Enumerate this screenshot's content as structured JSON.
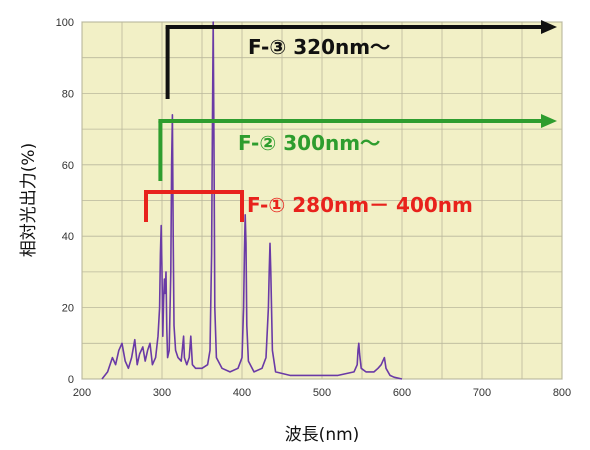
{
  "chart_data": {
    "type": "line",
    "xlabel": "波長(nm)",
    "ylabel": "相対光出力(%)",
    "xlim": [
      200,
      800
    ],
    "ylim": [
      0,
      100
    ],
    "x_ticks": [
      "200",
      "300",
      "400",
      "500",
      "600",
      "700",
      "800"
    ],
    "y_ticks": [
      "0",
      "20",
      "40",
      "60",
      "80",
      "100"
    ],
    "grid": true,
    "colors": {
      "plot_bg": "#f2f0c6",
      "grid": "#b9b79c",
      "spectrum": "#6a3aa6"
    },
    "series": [
      {
        "color": "#6a3aa6",
        "points": [
          [
            225,
            0
          ],
          [
            232,
            2
          ],
          [
            238,
            6
          ],
          [
            242,
            4
          ],
          [
            246,
            8
          ],
          [
            250,
            10
          ],
          [
            254,
            5
          ],
          [
            258,
            3
          ],
          [
            262,
            6
          ],
          [
            266,
            11
          ],
          [
            269,
            4
          ],
          [
            272,
            7
          ],
          [
            276,
            9
          ],
          [
            279,
            5
          ],
          [
            282,
            8
          ],
          [
            285,
            10
          ],
          [
            288,
            4
          ],
          [
            292,
            6
          ],
          [
            295,
            12
          ],
          [
            297,
            20
          ],
          [
            298,
            35
          ],
          [
            299,
            43
          ],
          [
            300,
            30
          ],
          [
            301,
            12
          ],
          [
            302,
            22
          ],
          [
            303,
            28
          ],
          [
            304,
            24
          ],
          [
            305,
            30
          ],
          [
            306,
            14
          ],
          [
            307,
            6
          ],
          [
            309,
            8
          ],
          [
            311,
            30
          ],
          [
            312,
            60
          ],
          [
            313,
            74
          ],
          [
            314,
            40
          ],
          [
            315,
            15
          ],
          [
            317,
            8
          ],
          [
            320,
            6
          ],
          [
            324,
            5
          ],
          [
            327,
            12
          ],
          [
            328,
            6
          ],
          [
            331,
            4
          ],
          [
            334,
            6
          ],
          [
            336,
            12
          ],
          [
            338,
            4
          ],
          [
            342,
            3
          ],
          [
            350,
            3
          ],
          [
            357,
            4
          ],
          [
            360,
            8
          ],
          [
            362,
            35
          ],
          [
            363,
            70
          ],
          [
            364,
            100
          ],
          [
            365,
            65
          ],
          [
            366,
            20
          ],
          [
            368,
            6
          ],
          [
            375,
            3
          ],
          [
            385,
            2
          ],
          [
            395,
            3
          ],
          [
            400,
            6
          ],
          [
            402,
            20
          ],
          [
            403,
            35
          ],
          [
            404,
            46
          ],
          [
            405,
            38
          ],
          [
            406,
            15
          ],
          [
            408,
            5
          ],
          [
            415,
            2
          ],
          [
            425,
            3
          ],
          [
            430,
            6
          ],
          [
            433,
            20
          ],
          [
            434,
            30
          ],
          [
            435,
            38
          ],
          [
            436,
            30
          ],
          [
            438,
            8
          ],
          [
            442,
            2
          ],
          [
            460,
            1
          ],
          [
            480,
            1
          ],
          [
            500,
            1
          ],
          [
            520,
            1
          ],
          [
            540,
            2
          ],
          [
            544,
            4
          ],
          [
            545,
            8
          ],
          [
            546,
            10
          ],
          [
            547,
            7
          ],
          [
            549,
            3
          ],
          [
            555,
            2
          ],
          [
            565,
            2
          ],
          [
            570,
            3
          ],
          [
            574,
            4
          ],
          [
            576,
            5
          ],
          [
            578,
            6
          ],
          [
            580,
            3
          ],
          [
            585,
            1
          ],
          [
            590,
            0.5
          ],
          [
            600,
            0
          ]
        ]
      }
    ],
    "annotations": [
      {
        "label": "F-③  320nm～",
        "color": "#111111",
        "x_start": 307,
        "x_end": 800,
        "y": 100,
        "style": "arrow"
      },
      {
        "label": "F-② 300nm～",
        "color": "#2e9d2e",
        "x_start": 298,
        "x_end": 800,
        "y": 73,
        "style": "arrow"
      },
      {
        "label": "F-① 280nm－ 400nm",
        "color": "#e8221c",
        "x_start": 280,
        "x_end": 400,
        "y": 53,
        "style": "bracket"
      }
    ]
  }
}
